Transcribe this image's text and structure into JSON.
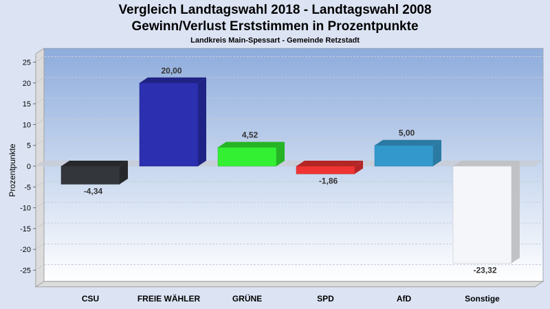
{
  "chart_data": {
    "type": "bar",
    "title": "Vergleich Landtagswahl 2018 - Landtagswahl 2008",
    "title_line2": "Gewinn/Verlust Erststimmen in Prozentpunkte",
    "subtitle": "Landkreis Main-Spessart - Gemeinde Retzstadt",
    "xlabel": "",
    "ylabel": "Prozentpunkte",
    "ylim": [
      -29,
      27
    ],
    "yticks": [
      25,
      20,
      15,
      10,
      5,
      0,
      -5,
      -10,
      -15,
      -20,
      -25
    ],
    "grid": true,
    "three_d": true,
    "categories": [
      "CSU",
      "FREIE WÄHLER",
      "GRÜNE",
      "SPD",
      "AfD",
      "Sonstige"
    ],
    "values": [
      -4.34,
      20.0,
      4.52,
      -1.86,
      5.0,
      -23.32
    ],
    "value_labels": [
      "-4,34",
      "20,00",
      "4,52",
      "-1,86",
      "5,00",
      "-23,32"
    ],
    "colors": [
      "#33363b",
      "#2b2fb0",
      "#33f033",
      "#f03333",
      "#3399cc",
      "#f4f6fa"
    ],
    "colors_side": [
      "#26282c",
      "#202386",
      "#26b426",
      "#b42626",
      "#2a7aa3",
      "#c0c2c6"
    ]
  }
}
